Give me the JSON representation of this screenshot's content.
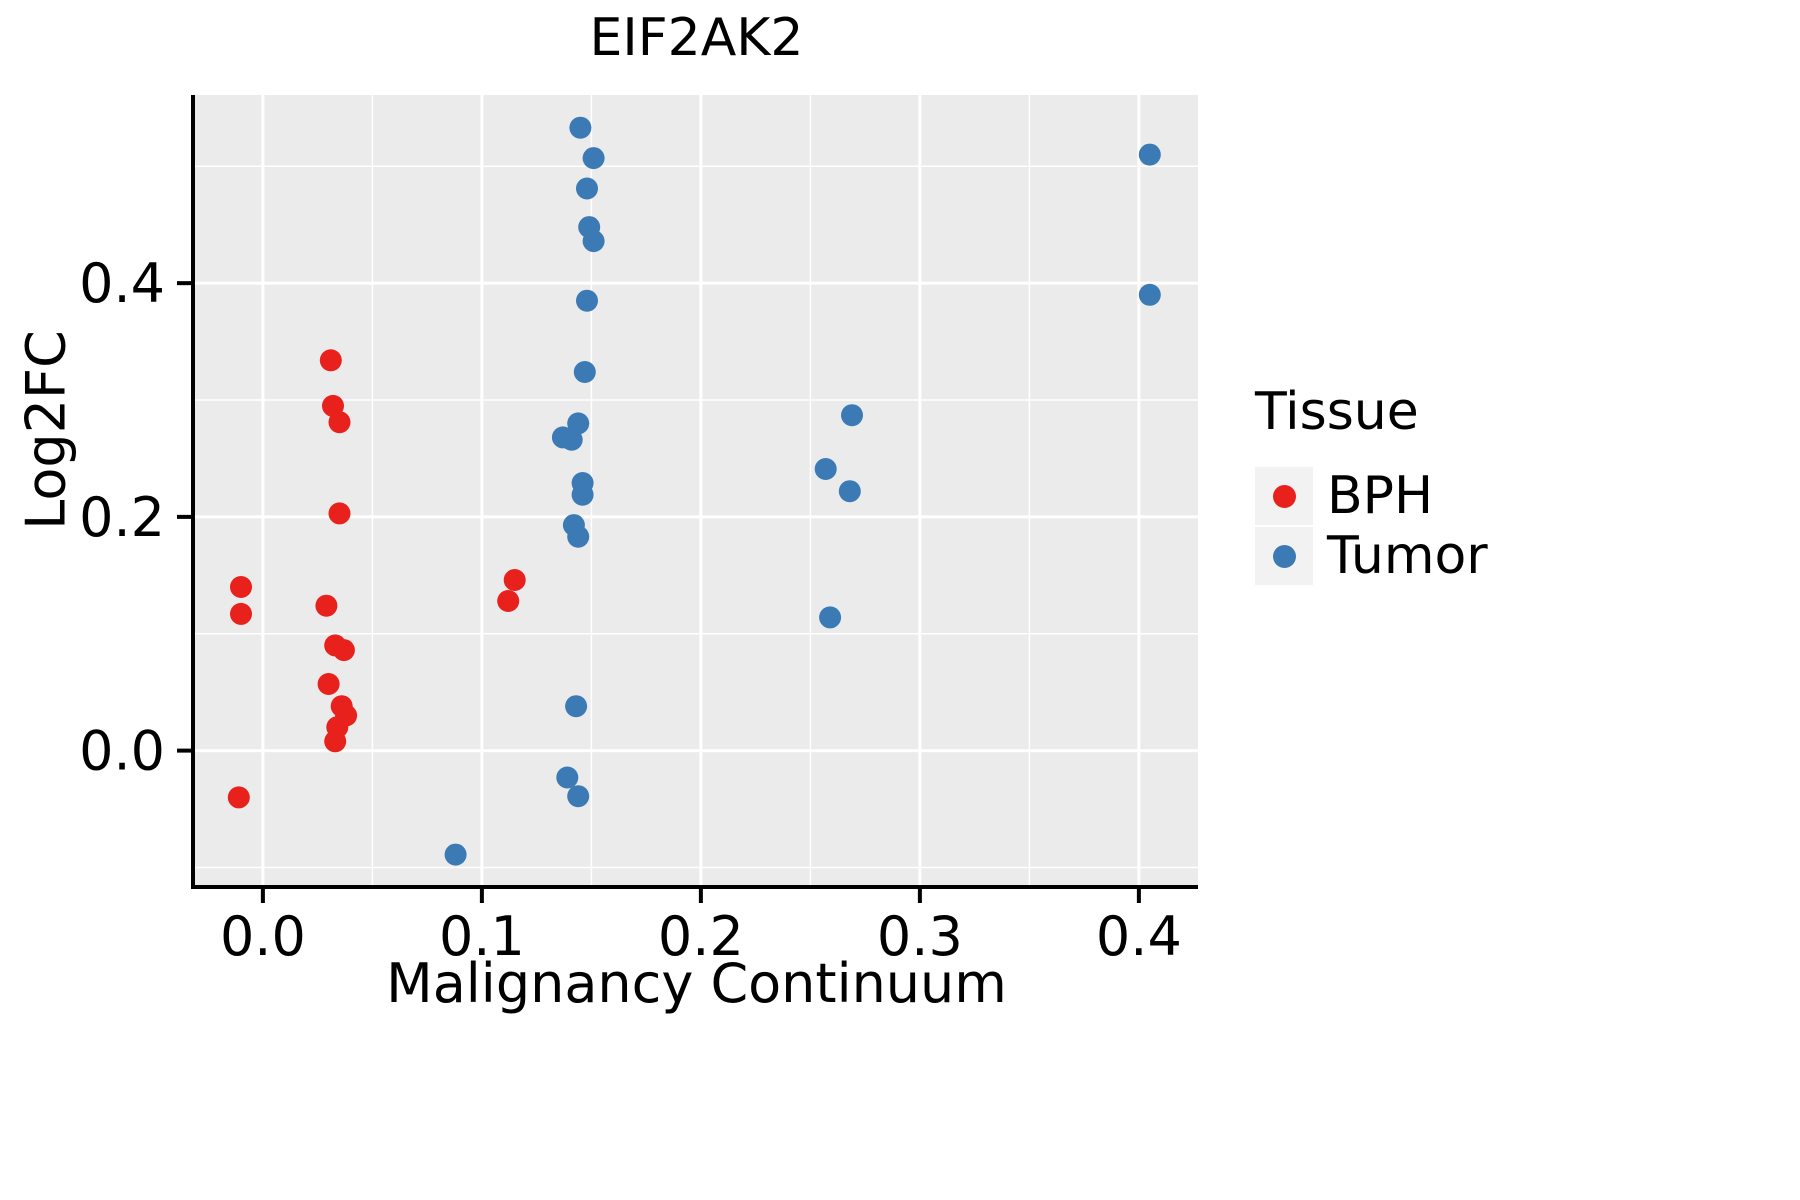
{
  "chart_data": {
    "type": "scatter",
    "title": "EIF2AK2",
    "xlabel": "Malignancy Continuum",
    "ylabel": "Log2FC",
    "xlim": [
      -0.031,
      0.427
    ],
    "ylim": [
      -0.115,
      0.561
    ],
    "x_ticks": [
      0.0,
      0.1,
      0.2,
      0.3,
      0.4
    ],
    "x_tick_labels": [
      "0.0",
      "0.1",
      "0.2",
      "0.3",
      "0.4"
    ],
    "y_ticks": [
      0.0,
      0.2,
      0.4
    ],
    "y_tick_labels": [
      "0.0",
      "0.2",
      "0.4"
    ],
    "x_minor_ticks": [
      0.05,
      0.15,
      0.25,
      0.35
    ],
    "y_minor_ticks": [
      -0.1,
      0.1,
      0.3,
      0.5
    ],
    "grid": true,
    "panel_background": "#EBEBEB",
    "grid_color": "#FFFFFF",
    "axis_color": "#000000",
    "legend_position": "right",
    "legend_title": "Tissue",
    "series": [
      {
        "name": "BPH",
        "color": "#E8211D",
        "points": [
          [
            -0.01,
            0.14
          ],
          [
            -0.01,
            0.117
          ],
          [
            -0.011,
            -0.04
          ],
          [
            0.031,
            0.334
          ],
          [
            0.032,
            0.295
          ],
          [
            0.035,
            0.281
          ],
          [
            0.035,
            0.203
          ],
          [
            0.029,
            0.124
          ],
          [
            0.033,
            0.09
          ],
          [
            0.037,
            0.086
          ],
          [
            0.03,
            0.057
          ],
          [
            0.036,
            0.038
          ],
          [
            0.038,
            0.03
          ],
          [
            0.034,
            0.02
          ],
          [
            0.033,
            0.008
          ],
          [
            0.115,
            0.146
          ],
          [
            0.112,
            0.128
          ]
        ]
      },
      {
        "name": "Tumor",
        "color": "#3C7AB5",
        "points": [
          [
            0.088,
            -0.089
          ],
          [
            0.145,
            0.533
          ],
          [
            0.151,
            0.507
          ],
          [
            0.148,
            0.481
          ],
          [
            0.149,
            0.448
          ],
          [
            0.151,
            0.436
          ],
          [
            0.148,
            0.385
          ],
          [
            0.147,
            0.324
          ],
          [
            0.144,
            0.28
          ],
          [
            0.137,
            0.268
          ],
          [
            0.141,
            0.266
          ],
          [
            0.146,
            0.229
          ],
          [
            0.146,
            0.219
          ],
          [
            0.142,
            0.193
          ],
          [
            0.144,
            0.183
          ],
          [
            0.143,
            0.038
          ],
          [
            0.139,
            -0.023
          ],
          [
            0.144,
            -0.039
          ],
          [
            0.269,
            0.287
          ],
          [
            0.257,
            0.241
          ],
          [
            0.268,
            0.222
          ],
          [
            0.259,
            0.114
          ],
          [
            0.405,
            0.51
          ],
          [
            0.405,
            0.39
          ]
        ]
      }
    ]
  }
}
